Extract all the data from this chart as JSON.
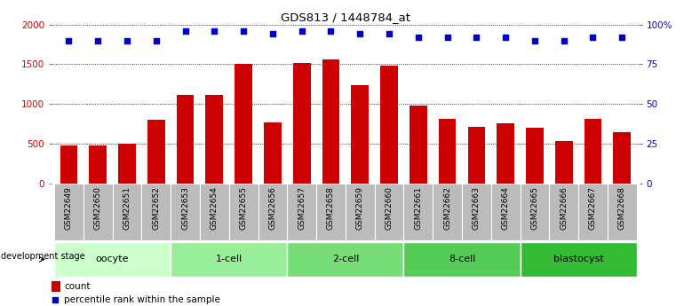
{
  "title": "GDS813 / 1448784_at",
  "samples": [
    "GSM22649",
    "GSM22650",
    "GSM22651",
    "GSM22652",
    "GSM22653",
    "GSM22654",
    "GSM22655",
    "GSM22656",
    "GSM22657",
    "GSM22658",
    "GSM22659",
    "GSM22660",
    "GSM22661",
    "GSM22662",
    "GSM22663",
    "GSM22664",
    "GSM22665",
    "GSM22666",
    "GSM22667",
    "GSM22668"
  ],
  "counts": [
    480,
    480,
    500,
    800,
    1120,
    1110,
    1510,
    770,
    1520,
    1560,
    1240,
    1480,
    980,
    810,
    710,
    760,
    700,
    530,
    810,
    650
  ],
  "percentiles": [
    90,
    90,
    90,
    90,
    96,
    96,
    96,
    94,
    96,
    96,
    94,
    94,
    92,
    92,
    92,
    92,
    90,
    90,
    92,
    92
  ],
  "stages": [
    {
      "name": "oocyte",
      "start": 0,
      "end": 4,
      "color": "#ccffcc"
    },
    {
      "name": "1-cell",
      "start": 4,
      "end": 8,
      "color": "#99ee99"
    },
    {
      "name": "2-cell",
      "start": 8,
      "end": 12,
      "color": "#77dd77"
    },
    {
      "name": "8-cell",
      "start": 12,
      "end": 16,
      "color": "#55cc55"
    },
    {
      "name": "blastocyst",
      "start": 16,
      "end": 20,
      "color": "#33bb33"
    }
  ],
  "ylim_left": [
    0,
    2000
  ],
  "ylim_right": [
    0,
    100
  ],
  "bar_color": "#cc0000",
  "dot_color": "#0000cc",
  "bg_color": "#ffffff",
  "tick_color_left": "#cc0000",
  "tick_color_right": "#0000cc",
  "yticks_left": [
    0,
    500,
    1000,
    1500,
    2000
  ],
  "ytick_labels_left": [
    "0",
    "500",
    "1000",
    "1500",
    "2000"
  ],
  "yticks_right": [
    0,
    25,
    50,
    75,
    100
  ],
  "ytick_labels_right": [
    "0",
    "25",
    "50",
    "75",
    "100%"
  ],
  "xticklabel_bg": "#bbbbbb",
  "legend_count_color": "#cc0000",
  "legend_dot_color": "#0000cc"
}
